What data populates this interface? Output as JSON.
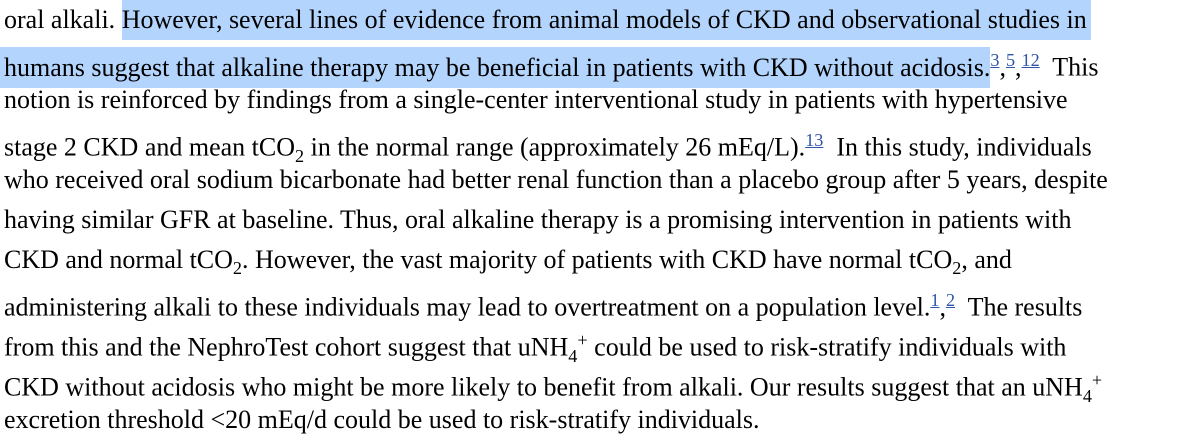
{
  "colors": {
    "background": "#ffffff",
    "text": "#000000",
    "selection": "#b3d4fc",
    "link": "#2e54a8"
  },
  "document": {
    "lines": [
      {
        "segments": [
          {
            "s": "plain",
            "t": "oral alkali. "
          },
          {
            "s": "hl",
            "t": "However, several lines of evidence from animal models of CKD and observational studies in",
            "tail": true
          }
        ]
      },
      {
        "segments": [
          {
            "s": "hl",
            "t": "humans suggest that alkaline therapy may be beneficial in patients with CKD without acidosis.",
            "lead": true
          },
          {
            "s": "ref",
            "t": "3"
          },
          {
            "s": "plain",
            "t": ","
          },
          {
            "s": "ref",
            "t": "5"
          },
          {
            "s": "plain",
            "t": ","
          },
          {
            "s": "ref",
            "t": "12"
          },
          {
            "s": "plain",
            "t": "  This"
          }
        ]
      },
      {
        "segments": [
          {
            "s": "plain",
            "t": "notion is reinforced by findings from a single-center interventional study in patients with hypertensive"
          }
        ]
      },
      {
        "segments": [
          {
            "s": "plain",
            "t": "stage 2 CKD and mean tCO"
          },
          {
            "s": "sub",
            "t": "2"
          },
          {
            "s": "plain",
            "t": " in the normal range (approximately 26 mEq/L)."
          },
          {
            "s": "ref",
            "t": "13"
          },
          {
            "s": "plain",
            "t": "  In this study, individuals"
          }
        ]
      },
      {
        "segments": [
          {
            "s": "plain",
            "t": "who received oral sodium bicarbonate had better renal function than a placebo group after 5 years, despite"
          }
        ]
      },
      {
        "segments": [
          {
            "s": "plain",
            "t": "having similar GFR at baseline. Thus, oral alkaline therapy is a promising intervention in patients with"
          }
        ]
      },
      {
        "segments": [
          {
            "s": "plain",
            "t": "CKD and normal tCO"
          },
          {
            "s": "sub",
            "t": "2"
          },
          {
            "s": "plain",
            "t": ". However, the vast majority of patients with CKD have normal tCO"
          },
          {
            "s": "sub",
            "t": "2"
          },
          {
            "s": "plain",
            "t": ", and"
          }
        ]
      },
      {
        "segments": [
          {
            "s": "plain",
            "t": "administering alkali to these individuals may lead to overtreatment on a population level."
          },
          {
            "s": "ref",
            "t": "1"
          },
          {
            "s": "plain",
            "t": ","
          },
          {
            "s": "ref",
            "t": "2"
          },
          {
            "s": "plain",
            "t": "  The results"
          }
        ]
      },
      {
        "segments": [
          {
            "s": "plain",
            "t": "from this and the NephroTest cohort suggest that uNH"
          },
          {
            "s": "sub",
            "t": "4"
          },
          {
            "s": "sup",
            "t": "+"
          },
          {
            "s": "plain",
            "t": " could be used to risk-stratify individuals with"
          }
        ]
      },
      {
        "segments": [
          {
            "s": "plain",
            "t": "CKD without acidosis who might be more likely to benefit from alkali. Our results suggest that an uNH"
          },
          {
            "s": "sub",
            "t": "4"
          },
          {
            "s": "sup",
            "t": "+"
          }
        ]
      },
      {
        "segments": [
          {
            "s": "plain",
            "t": "excretion threshold <20 mEq/d could be used to risk-stratify individuals."
          }
        ]
      }
    ]
  }
}
